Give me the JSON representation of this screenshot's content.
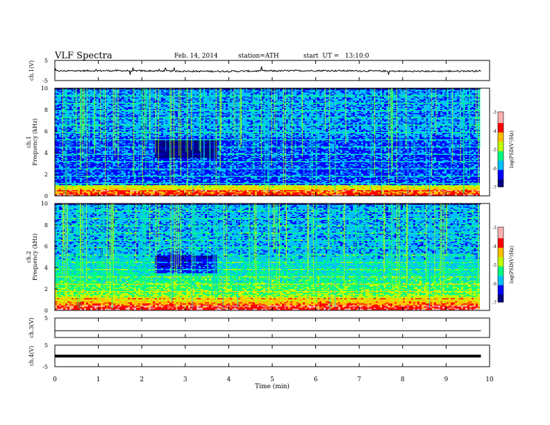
{
  "header": {
    "title": "VLF Spectra",
    "date": "Feb. 14, 2014",
    "station": "station=ATH",
    "start": "start  UT =   13:10:0"
  },
  "chart_data": [
    {
      "type": "line",
      "ylabel": "ch.1(V)",
      "ylim": [
        -5,
        5
      ],
      "yticks": [
        "5",
        "-5"
      ],
      "series": [
        {
          "x": [
            0,
            2,
            4,
            6,
            8,
            9.8
          ],
          "y": [
            -0.3,
            -0.2,
            -0.2,
            -0.1,
            -0.1,
            -0.2
          ]
        }
      ]
    },
    {
      "type": "heatmap",
      "ylabel": "ch.1\nFrequency  (kHz)",
      "ylim": [
        0,
        10
      ],
      "yticks": [
        "0",
        "2",
        "4",
        "6",
        "8",
        "10"
      ],
      "colorbar": {
        "label": "log(PSD(V²/Hz)",
        "range": [
          -7,
          -3
        ],
        "ticks": [
          "-3",
          "-4",
          "-5",
          "-6",
          "-7"
        ]
      },
      "colormap": [
        "#000080",
        "#0000ff",
        "#00c0ff",
        "#00ff80",
        "#c0ff00",
        "#ffc000",
        "#ff0000",
        "#ffb0b0"
      ]
    },
    {
      "type": "heatmap",
      "ylabel": "ch.2\nFrequency  (kHz)",
      "ylim": [
        0,
        10
      ],
      "yticks": [
        "0",
        "2",
        "4",
        "6",
        "8",
        "10"
      ],
      "colorbar": {
        "label": "log(PSD(V²/Hz)",
        "range": [
          -7,
          -3
        ],
        "ticks": [
          "-3",
          "-4",
          "-5",
          "-6",
          "-7"
        ]
      }
    },
    {
      "type": "line",
      "ylabel": "ch.3(V)",
      "ylim": [
        -5,
        5
      ],
      "yticks": [
        "5"
      ],
      "series": [
        {
          "x": [
            0,
            9.8
          ],
          "y": [
            -1.5,
            -1.5
          ]
        }
      ]
    },
    {
      "type": "line",
      "ylabel": "ch.4(V)",
      "ylim": [
        -5,
        5
      ],
      "yticks": [
        "5",
        "-5"
      ],
      "series": [
        {
          "x": [
            0,
            9.8
          ],
          "y": [
            -0.1,
            -0.1
          ]
        }
      ]
    }
  ],
  "xaxis": {
    "label": "Time  (min)",
    "xlim": [
      0,
      10
    ],
    "ticks": [
      "0",
      "1",
      "2",
      "3",
      "4",
      "5",
      "6",
      "7",
      "8",
      "9",
      "10"
    ]
  }
}
